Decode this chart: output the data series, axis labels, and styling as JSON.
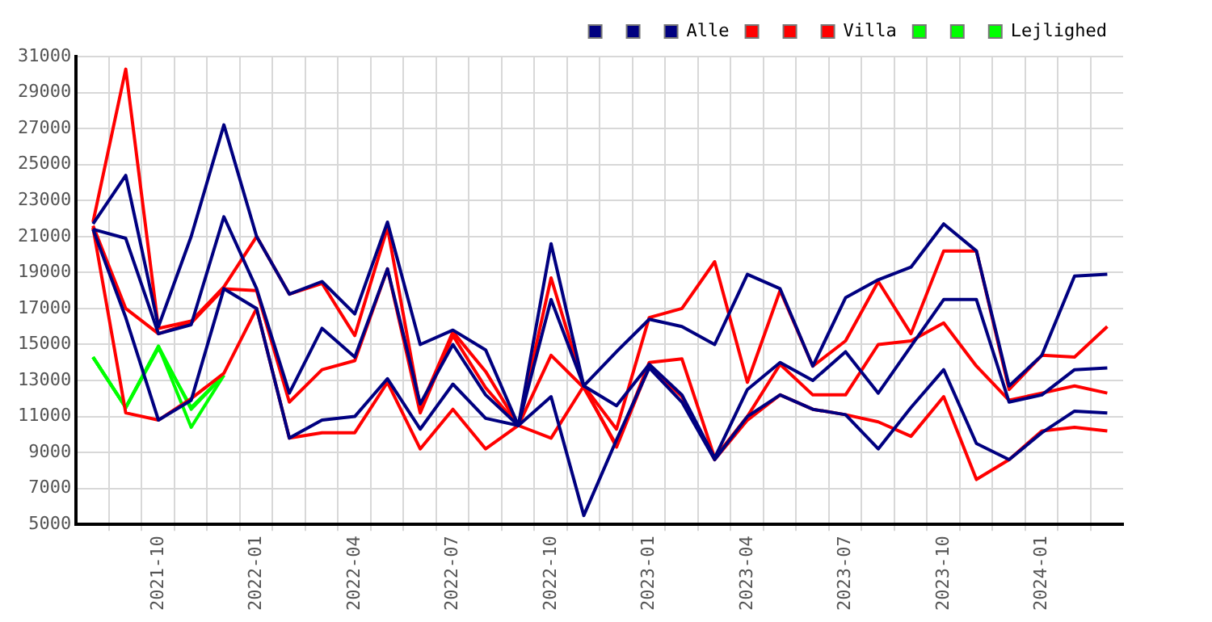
{
  "chart_data": {
    "type": "line",
    "x": [
      "2021-08",
      "2021-09",
      "2021-10",
      "2021-11",
      "2021-12",
      "2022-01",
      "2022-02",
      "2022-03",
      "2022-04",
      "2022-05",
      "2022-06",
      "2022-07",
      "2022-08",
      "2022-09",
      "2022-10",
      "2022-11",
      "2022-12",
      "2023-01",
      "2023-02",
      "2023-03",
      "2023-04",
      "2023-05",
      "2023-06",
      "2023-07",
      "2023-08",
      "2023-09",
      "2023-10",
      "2023-11",
      "2023-12",
      "2024-01",
      "2024-02",
      "2024-03"
    ],
    "xlim": [
      "2021-07-16",
      "2024-03-16"
    ],
    "xticks": [
      {
        "value": "2021-08-16",
        "label": null
      },
      {
        "value": "2021-09-16",
        "label": null
      },
      "2021-10",
      {
        "value": "2021-10-16",
        "label": null
      },
      {
        "value": "2021-11-16",
        "label": null
      },
      {
        "value": "2021-12-16",
        "label": null
      },
      "2022-01",
      {
        "value": "2022-01-16",
        "label": null
      },
      {
        "value": "2022-02-16",
        "label": null
      },
      {
        "value": "2022-03-16",
        "label": null
      },
      "2022-04",
      {
        "value": "2022-04-16",
        "label": null
      },
      {
        "value": "2022-05-16",
        "label": null
      },
      {
        "value": "2022-06-16",
        "label": null
      },
      "2022-07",
      {
        "value": "2022-07-16",
        "label": null
      },
      {
        "value": "2022-08-16",
        "label": null
      },
      {
        "value": "2022-09-16",
        "label": null
      },
      "2022-10",
      {
        "value": "2022-10-16",
        "label": null
      },
      {
        "value": "2022-11-16",
        "label": null
      },
      {
        "value": "2022-12-16",
        "label": null
      },
      "2023-01",
      {
        "value": "2023-01-16",
        "label": null
      },
      {
        "value": "2023-02-16",
        "label": null
      },
      {
        "value": "2023-03-16",
        "label": null
      },
      "2023-04",
      {
        "value": "2023-04-16",
        "label": null
      },
      {
        "value": "2023-05-16",
        "label": null
      },
      {
        "value": "2023-06-16",
        "label": null
      },
      "2023-07",
      {
        "value": "2023-07-16",
        "label": null
      },
      {
        "value": "2023-08-16",
        "label": null
      },
      {
        "value": "2023-09-16",
        "label": null
      },
      "2023-10",
      {
        "value": "2023-10-16",
        "label": null
      },
      {
        "value": "2023-11-16",
        "label": null
      },
      {
        "value": "2023-12-16",
        "label": null
      },
      "2024-01",
      {
        "value": "2024-01-16",
        "label": null
      },
      {
        "value": "2024-02-16",
        "label": null
      }
    ],
    "ylim": [
      5000,
      31000
    ],
    "yticks": [
      5000,
      7000,
      9000,
      11000,
      13000,
      15000,
      17000,
      19000,
      21000,
      23000,
      25000,
      27000,
      29000,
      31000
    ],
    "grid": true,
    "legend": "top right",
    "series": [
      {
        "color": "#000080",
        "values": [
          21700,
          24400,
          16000,
          21000,
          27200,
          21000,
          17800,
          18500,
          16700,
          21800,
          15000,
          15800,
          14700,
          10500,
          20600,
          12700,
          14600,
          16400,
          16000,
          15000,
          18900,
          18100,
          13800,
          17600,
          18600,
          19300,
          21700,
          20200,
          12700,
          14400,
          18800,
          18900
        ]
      },
      {
        "color": "#000080",
        "values": [
          21400,
          20900,
          15600,
          16100,
          22100,
          18100,
          12300,
          15900,
          14300,
          19200,
          11700,
          15000,
          12200,
          10500,
          17500,
          12700,
          11600,
          13900,
          12200,
          8700,
          12500,
          14000,
          13000,
          14600,
          12300,
          14900,
          17500,
          17500,
          11800,
          12200,
          13600,
          13700
        ]
      },
      {
        "name": "Alle",
        "color": "#000080",
        "values": [
          21400,
          16500,
          10800,
          11900,
          18100,
          17000,
          9800,
          10800,
          11000,
          13100,
          10300,
          12800,
          10900,
          10500,
          12100,
          5500,
          9700,
          13700,
          11800,
          8600,
          11000,
          12200,
          11400,
          11100,
          9200,
          11500,
          13600,
          9500,
          8600,
          10100,
          11300,
          11200
        ]
      },
      {
        "color": "#ff0000",
        "values": [
          21800,
          30300,
          15900,
          16300,
          18200,
          21000,
          17800,
          18400,
          15500,
          21500,
          11500,
          15700,
          13500,
          10500,
          18700,
          12700,
          10300,
          16500,
          17000,
          19600,
          12900,
          18000,
          13800,
          15200,
          18500,
          15600,
          20200,
          20200,
          12500,
          14400,
          14300,
          16000
        ]
      },
      {
        "color": "#ff0000",
        "values": [
          21600,
          17000,
          15600,
          16200,
          18100,
          18000,
          11800,
          13600,
          14100,
          19200,
          11200,
          15500,
          12600,
          10500,
          14400,
          12600,
          9400,
          14000,
          14200,
          8700,
          11000,
          13900,
          12200,
          12200,
          15000,
          15200,
          16200,
          13800,
          11900,
          12300,
          12700,
          12300
        ]
      },
      {
        "name": "Villa",
        "color": "#ff0000",
        "values": [
          21500,
          11200,
          10800,
          12000,
          13400,
          17000,
          9800,
          10100,
          10100,
          12900,
          9200,
          11400,
          9200,
          10500,
          9800,
          12700,
          9300,
          13800,
          12100,
          8600,
          10800,
          12200,
          11400,
          11100,
          10700,
          9900,
          12100,
          7500,
          8600,
          10200,
          10400,
          10200
        ]
      },
      {
        "color": "#00ff00",
        "x": [
          "2021-08",
          "2021-09",
          "2021-10",
          "2021-11",
          "2021-12"
        ],
        "values": [
          14300,
          11500,
          14900,
          10400,
          13300
        ]
      },
      {
        "color": "#00ff00",
        "x": [
          "2021-08",
          "2021-09",
          "2021-10",
          "2021-11",
          "2021-12"
        ],
        "values": [
          14300,
          11500,
          14800,
          11500,
          13300
        ]
      },
      {
        "name": "Lejlighed",
        "color": "#00ff00",
        "x": [
          "2021-08",
          "2021-09",
          "2021-10",
          "2021-11",
          "2021-12"
        ],
        "values": [
          14300,
          11500,
          14900,
          11400,
          13300
        ]
      }
    ]
  }
}
